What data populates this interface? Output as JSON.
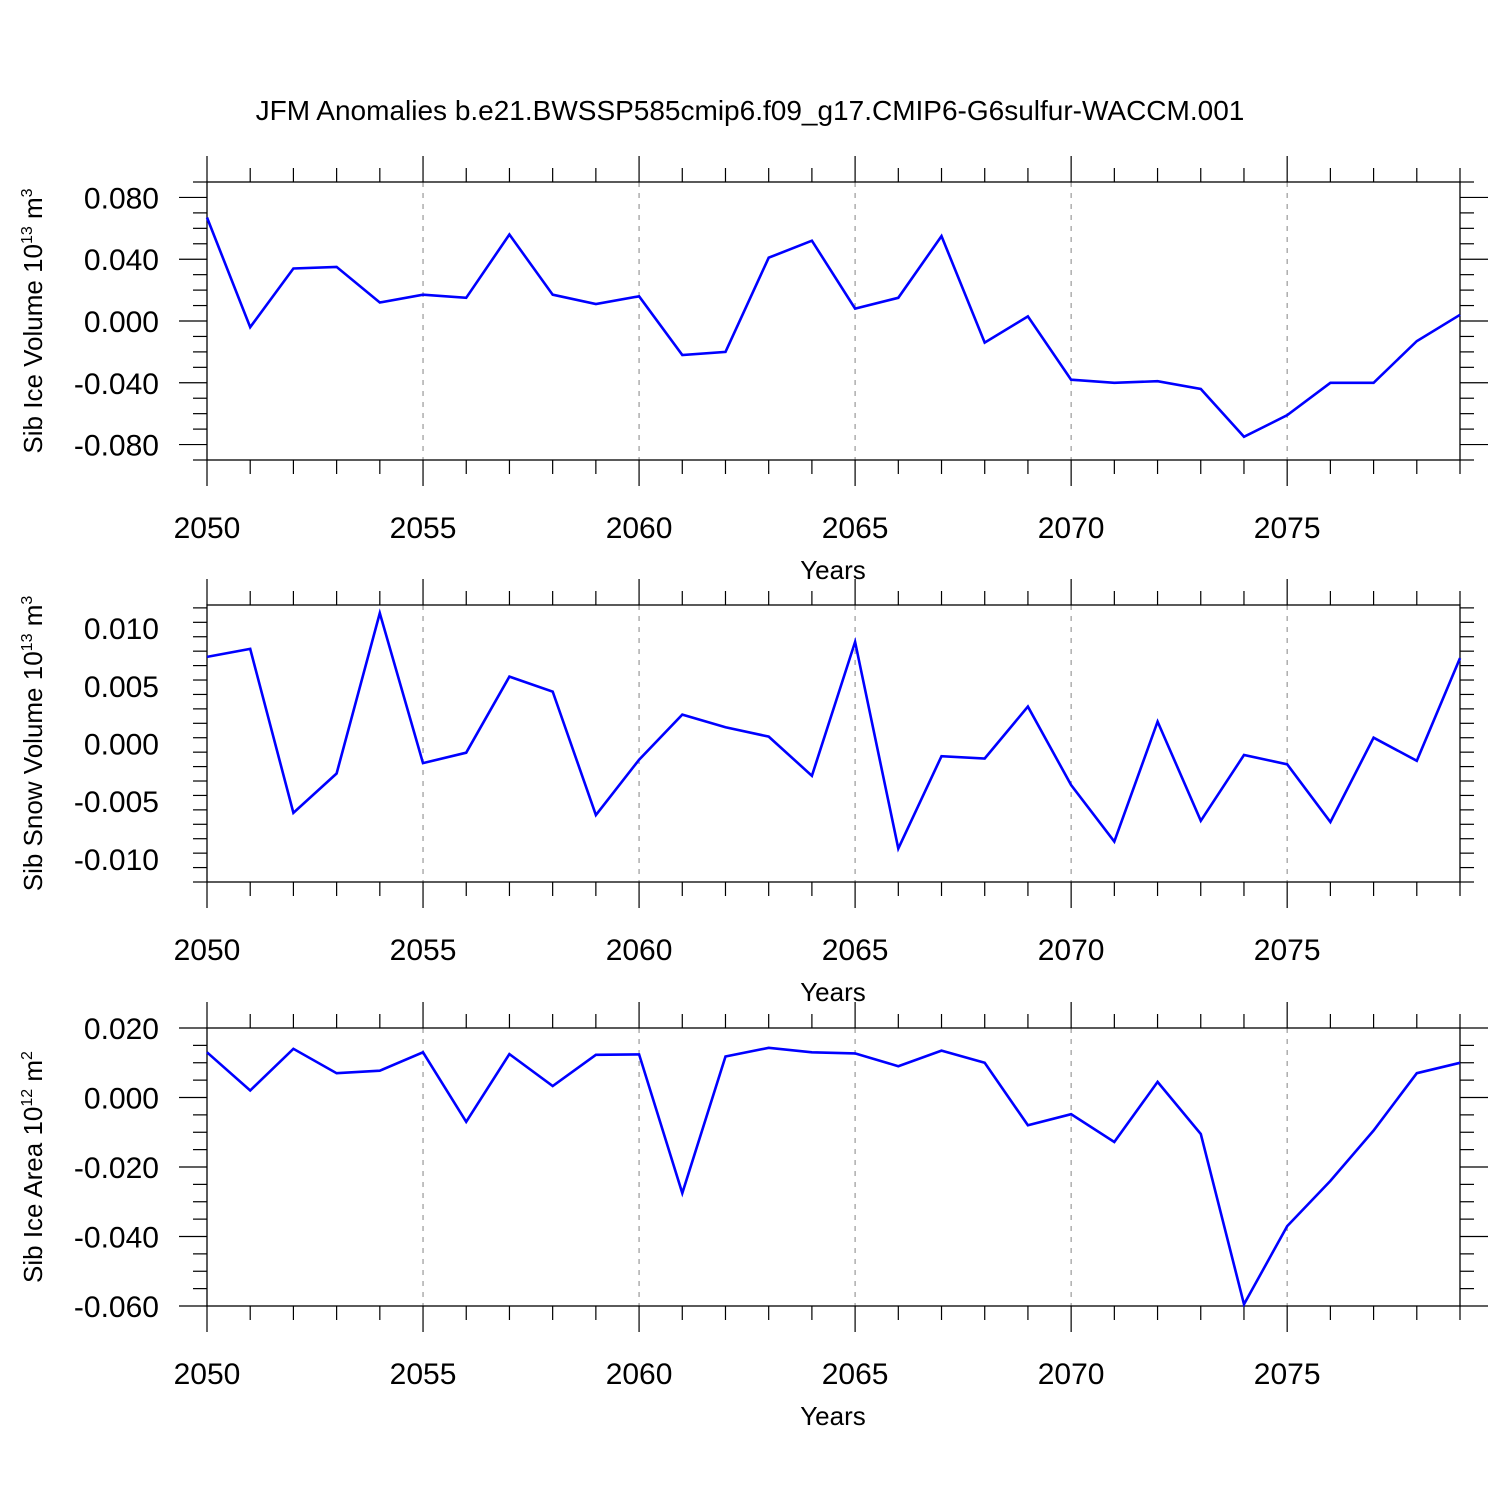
{
  "figure": {
    "title": "JFM Anomalies b.e21.BWSSP585cmip6.f09_g17.CMIP6-G6sulfur-WACCM.001"
  },
  "chart_data": [
    {
      "type": "line",
      "xlabel": "Years",
      "ylabel": {
        "text": "Sib Ice Volume 10",
        "exp": "13",
        "unit": " m",
        "unit_exp": "3"
      },
      "xlim": [
        2050,
        2079
      ],
      "ylim": [
        -0.09,
        0.09
      ],
      "yticks": [
        -0.08,
        -0.04,
        0.0,
        0.04,
        0.08
      ],
      "ytick_labels": [
        "-0.080",
        "-0.040",
        "0.000",
        "0.040",
        "0.080"
      ],
      "xticks": [
        2050,
        2055,
        2060,
        2065,
        2070,
        2075
      ],
      "xtick_labels": [
        "2050",
        "2055",
        "2060",
        "2065",
        "2070",
        "2075"
      ],
      "grid": "vertical-dashed",
      "line_color": "#0000ff",
      "series": [
        {
          "x": [
            2050,
            2051,
            2052,
            2053,
            2054,
            2055,
            2056,
            2057,
            2058,
            2059,
            2060,
            2061,
            2062,
            2063,
            2064,
            2065,
            2066,
            2067,
            2068,
            2069,
            2070,
            2071,
            2072,
            2073,
            2074,
            2075,
            2076,
            2077,
            2078,
            2079
          ],
          "values": [
            0.067,
            -0.004,
            0.034,
            0.035,
            0.012,
            0.017,
            0.015,
            0.056,
            0.017,
            0.011,
            0.016,
            -0.022,
            -0.02,
            0.041,
            0.052,
            0.008,
            0.015,
            0.055,
            -0.014,
            0.003,
            -0.038,
            -0.04,
            -0.039,
            -0.044,
            -0.075,
            -0.061,
            -0.04,
            -0.04,
            -0.013,
            0.004
          ]
        }
      ]
    },
    {
      "type": "line",
      "xlabel": "Years",
      "ylabel": {
        "text": "Sib Snow Volume 10",
        "exp": "13",
        "unit": " m",
        "unit_exp": "3"
      },
      "xlim": [
        2050,
        2079
      ],
      "ylim": [
        -0.012,
        0.012
      ],
      "yticks": [
        -0.01,
        -0.005,
        0.0,
        0.005,
        0.01
      ],
      "ytick_labels": [
        "-0.010",
        "-0.005",
        "0.000",
        "0.005",
        "0.010"
      ],
      "xticks": [
        2050,
        2055,
        2060,
        2065,
        2070,
        2075
      ],
      "xtick_labels": [
        "2050",
        "2055",
        "2060",
        "2065",
        "2070",
        "2075"
      ],
      "grid": "vertical-dashed",
      "line_color": "#0000ff",
      "series": [
        {
          "x": [
            2050,
            2051,
            2052,
            2053,
            2054,
            2055,
            2056,
            2057,
            2058,
            2059,
            2060,
            2061,
            2062,
            2063,
            2064,
            2065,
            2066,
            2067,
            2068,
            2069,
            2070,
            2071,
            2072,
            2073,
            2074,
            2075,
            2076,
            2077,
            2078,
            2079
          ],
          "values": [
            0.0075,
            0.0082,
            -0.006,
            -0.0026,
            0.0113,
            -0.0017,
            -0.0008,
            0.0058,
            0.0045,
            -0.0062,
            -0.0014,
            0.0025,
            0.0014,
            0.0006,
            -0.0028,
            0.0088,
            -0.0091,
            -0.0011,
            -0.0013,
            0.0032,
            -0.0036,
            -0.0085,
            0.0019,
            -0.0067,
            -0.001,
            -0.0018,
            -0.0068,
            0.0005,
            -0.0015,
            0.0074
          ]
        }
      ]
    },
    {
      "type": "line",
      "xlabel": "Years",
      "ylabel": {
        "text": "Sib Ice Area 10",
        "exp": "12",
        "unit": " m",
        "unit_exp": "2"
      },
      "xlim": [
        2050,
        2079
      ],
      "ylim": [
        -0.06,
        0.02
      ],
      "yticks": [
        -0.06,
        -0.04,
        -0.02,
        0.0,
        0.02
      ],
      "ytick_labels": [
        "-0.060",
        "-0.040",
        "-0.020",
        "0.000",
        "0.020"
      ],
      "xticks": [
        2050,
        2055,
        2060,
        2065,
        2070,
        2075
      ],
      "xtick_labels": [
        "2050",
        "2055",
        "2060",
        "2065",
        "2070",
        "2075"
      ],
      "grid": "vertical-dashed",
      "line_color": "#0000ff",
      "series": [
        {
          "x": [
            2050,
            2051,
            2052,
            2053,
            2054,
            2055,
            2056,
            2057,
            2058,
            2059,
            2060,
            2061,
            2062,
            2063,
            2064,
            2065,
            2066,
            2067,
            2068,
            2069,
            2070,
            2071,
            2072,
            2073,
            2074,
            2075,
            2076,
            2077,
            2078,
            2079
          ],
          "values": [
            0.013,
            0.002,
            0.014,
            0.007,
            0.0077,
            0.013,
            -0.007,
            0.0125,
            0.0033,
            0.0123,
            0.0124,
            -0.0275,
            0.0118,
            0.0143,
            0.013,
            0.0127,
            0.009,
            0.0135,
            0.01,
            -0.008,
            -0.0048,
            -0.0128,
            0.0045,
            -0.0105,
            -0.0595,
            -0.037,
            -0.024,
            -0.0095,
            0.007,
            0.01
          ]
        }
      ]
    }
  ]
}
